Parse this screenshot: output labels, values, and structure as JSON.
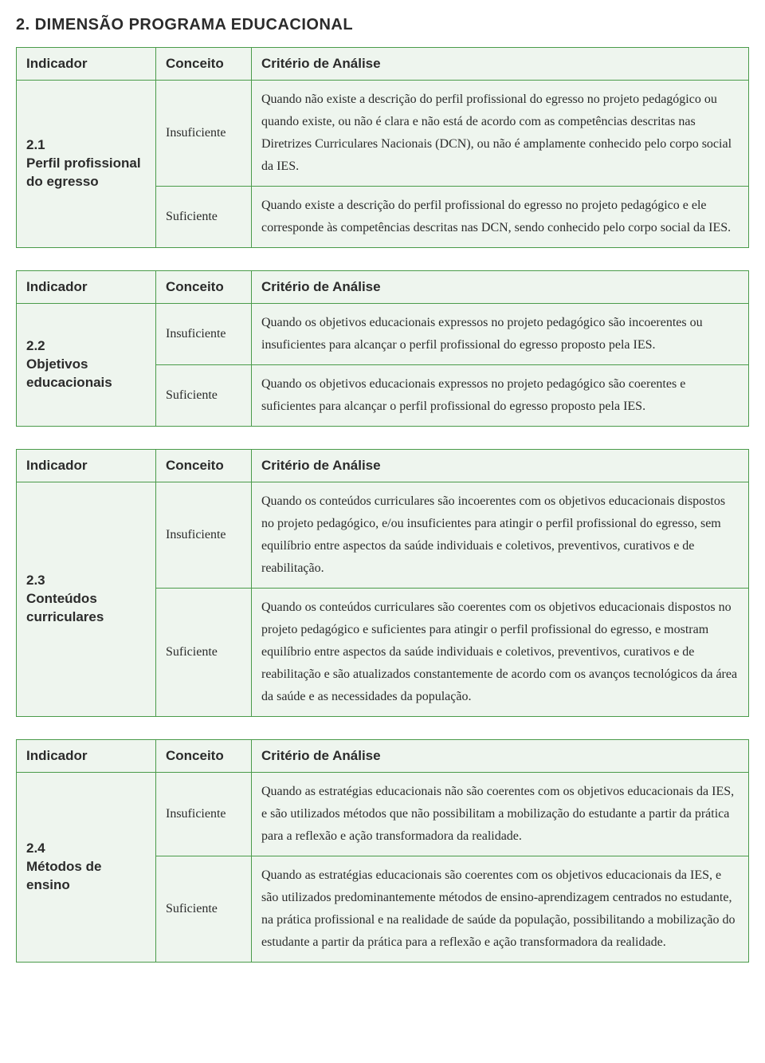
{
  "section_title": "2. DIMENSÃO PROGRAMA EDUCACIONAL",
  "headers": {
    "indicator": "Indicador",
    "concept": "Conceito",
    "criterion": "Critério de Análise"
  },
  "styling": {
    "border_color": "#4a9b4a",
    "cell_background": "#eef5ee",
    "page_background": "#ffffff",
    "title_font": "Arial",
    "body_font": "Georgia",
    "title_fontsize": 20,
    "header_fontsize": 17,
    "body_fontsize": 16,
    "col_widths": {
      "indicator": 175,
      "concept": 120
    }
  },
  "tables": [
    {
      "indicator_number": "2.1",
      "indicator_name": "Perfil profissional do egresso",
      "rows": [
        {
          "concept": "Insuficiente",
          "criterion": "Quando não existe a descrição do perfil profissional do egresso no projeto pedagógico ou quando existe, ou não é clara e não está de acordo com as competências descritas nas Diretrizes Curriculares Nacionais (DCN), ou não é amplamente conhecido pelo corpo social da IES."
        },
        {
          "concept": "Suficiente",
          "criterion": "Quando existe a descrição do perfil profissional do egresso no projeto pedagógico e ele corresponde às competências descritas nas DCN, sendo conhecido pelo corpo social da IES."
        }
      ]
    },
    {
      "indicator_number": "2.2",
      "indicator_name": "Objetivos educacionais",
      "rows": [
        {
          "concept": "Insuficiente",
          "criterion": "Quando os objetivos educacionais expressos no projeto pedagógico são incoerentes ou insuficientes para alcançar o perfil profissional do egresso proposto pela IES."
        },
        {
          "concept": "Suficiente",
          "criterion": "Quando os objetivos educacionais expressos no projeto pedagógico são coerentes e suficientes para alcançar o perfil profissional do egresso proposto pela IES."
        }
      ]
    },
    {
      "indicator_number": "2.3",
      "indicator_name": "Conteúdos curriculares",
      "rows": [
        {
          "concept": "Insuficiente",
          "criterion": "Quando os conteúdos curriculares são incoerentes com os objetivos educacionais dispostos no projeto pedagógico, e/ou insuficientes para atingir o perfil profissional do egresso, sem equilíbrio entre aspectos da saúde individuais e coletivos, preventivos, curativos e de reabilitação."
        },
        {
          "concept": "Suficiente",
          "criterion": "Quando os conteúdos curriculares são coerentes com os objetivos educacionais dispostos no projeto pedagógico e suficientes para atingir o perfil profissional do egresso, e mostram equilíbrio entre aspectos da saúde individuais e coletivos, preventivos, curativos e de reabilitação e são atualizados constantemente de acordo com os avanços tecnológicos da área da saúde e as necessidades da população."
        }
      ]
    },
    {
      "indicator_number": "2.4",
      "indicator_name": "Métodos de ensino",
      "rows": [
        {
          "concept": "Insuficiente",
          "criterion": "Quando as estratégias educacionais não são coerentes com os objetivos educacionais da IES, e são utilizados métodos que não possibilitam a mobilização do estudante a partir da prática para a reflexão e ação transformadora da realidade."
        },
        {
          "concept": "Suficiente",
          "criterion": "Quando as estratégias educacionais são coerentes com os objetivos educacionais da IES, e são utilizados predominantemente métodos de ensino-aprendizagem centrados no estudante, na prática profissional e na realidade de saúde da população, possibilitando a mobilização do estudante a partir da prática para a reflexão e ação transformadora da realidade."
        }
      ]
    }
  ]
}
